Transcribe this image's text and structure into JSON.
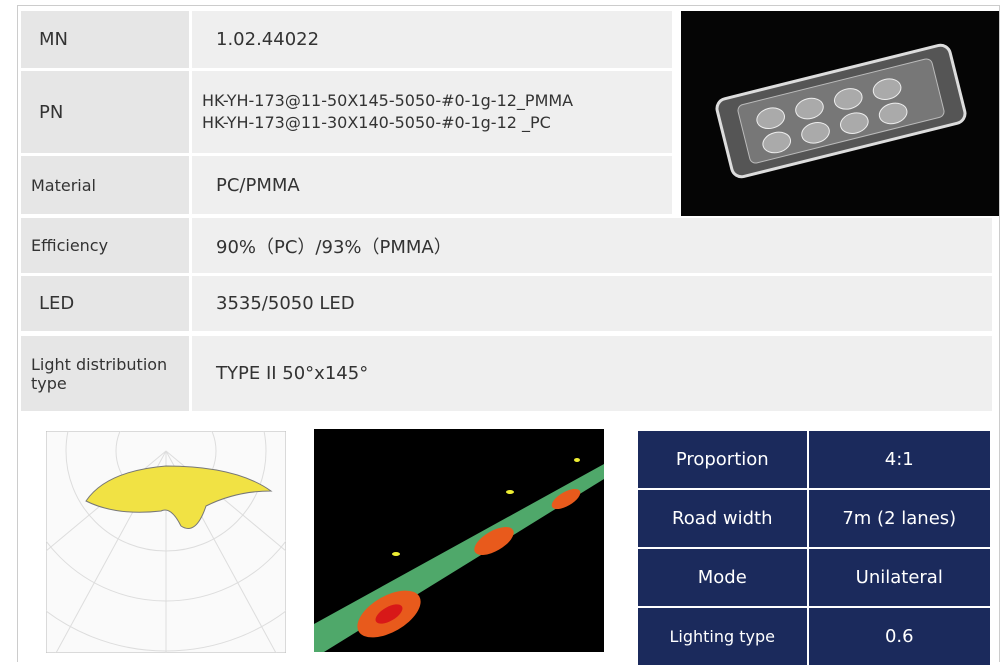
{
  "specs": [
    {
      "label": "MN",
      "value": [
        "1.02.44022"
      ]
    },
    {
      "label": "PN",
      "value": [
        "HK-YH-173@11-50X145-5050-#0-1g-12_PMMA",
        "HK-YH-173@11-30X140-5050-#0-1g-12 _PC"
      ]
    },
    {
      "label": "Material",
      "value": [
        "PC/PMMA"
      ]
    },
    {
      "label": "Efficiency",
      "value": [
        "90%（PC）/93%（PMMA）"
      ]
    },
    {
      "label": "LED",
      "value": [
        "3535/5050 LED"
      ]
    },
    {
      "label": "Light distribution type",
      "value": [
        "TYPE II 50°x145°"
      ]
    }
  ],
  "table": {
    "rows": [
      [
        "Proportion",
        "4:1"
      ],
      [
        "Road width",
        "7m (2 lanes)"
      ],
      [
        "Mode",
        "Unilateral"
      ],
      [
        "Lighting type",
        "0.6"
      ]
    ]
  }
}
